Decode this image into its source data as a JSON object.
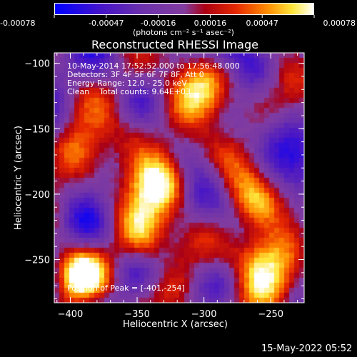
{
  "chart_data": {
    "type": "heatmap",
    "title": "Reconstructed RHESSI Image",
    "xlabel": "Heliocentric X (arcsec)",
    "ylabel": "Heliocentric Y (arcsec)",
    "xlim": [
      -412,
      -225
    ],
    "ylim": [
      -283,
      -92
    ],
    "x_ticks": [
      -400,
      -350,
      -300,
      -250
    ],
    "y_ticks": [
      -100,
      -150,
      -200,
      -250
    ],
    "colorbar": {
      "ticks": [
        "-0.00078",
        "-0.00047",
        "-0.00016",
        "0.00016",
        "0.00047",
        "0.00078"
      ],
      "range": [
        -0.00078,
        0.00078
      ],
      "unit_label": "(photons cm⁻² s⁻¹ asec⁻²)"
    },
    "annotations": [
      "10-May-2014 17:52:52.000 to 17:56:48.000",
      "Detectors: 3F 4F 5F 6F 7F 8F, Att 0",
      "Energy Range: 12.0 - 25.0 keV",
      "Clean    Total counts: 9.64E+03"
    ],
    "peak_label": "Position of Peak = [-401,-254]",
    "bright_sources": [
      {
        "x": -330,
        "y": -192,
        "intensity": 0.95
      },
      {
        "x": -345,
        "y": -235,
        "intensity": 0.9
      },
      {
        "x": -398,
        "y": -262,
        "intensity": 1.0
      },
      {
        "x": -395,
        "y": -165,
        "intensity": 0.7
      },
      {
        "x": -260,
        "y": -210,
        "intensity": 0.8
      },
      {
        "x": -262,
        "y": -245,
        "intensity": 0.7
      },
      {
        "x": -300,
        "y": -125,
        "intensity": 0.65
      },
      {
        "x": -360,
        "y": -110,
        "intensity": 0.55
      },
      {
        "x": -245,
        "y": -280,
        "intensity": 0.55
      }
    ],
    "colors": {
      "low": "#0000ff",
      "mid": "#7a3cc8",
      "high": "#ffffff"
    }
  },
  "footer": {
    "timestamp": "15-May-2022 05:52"
  }
}
